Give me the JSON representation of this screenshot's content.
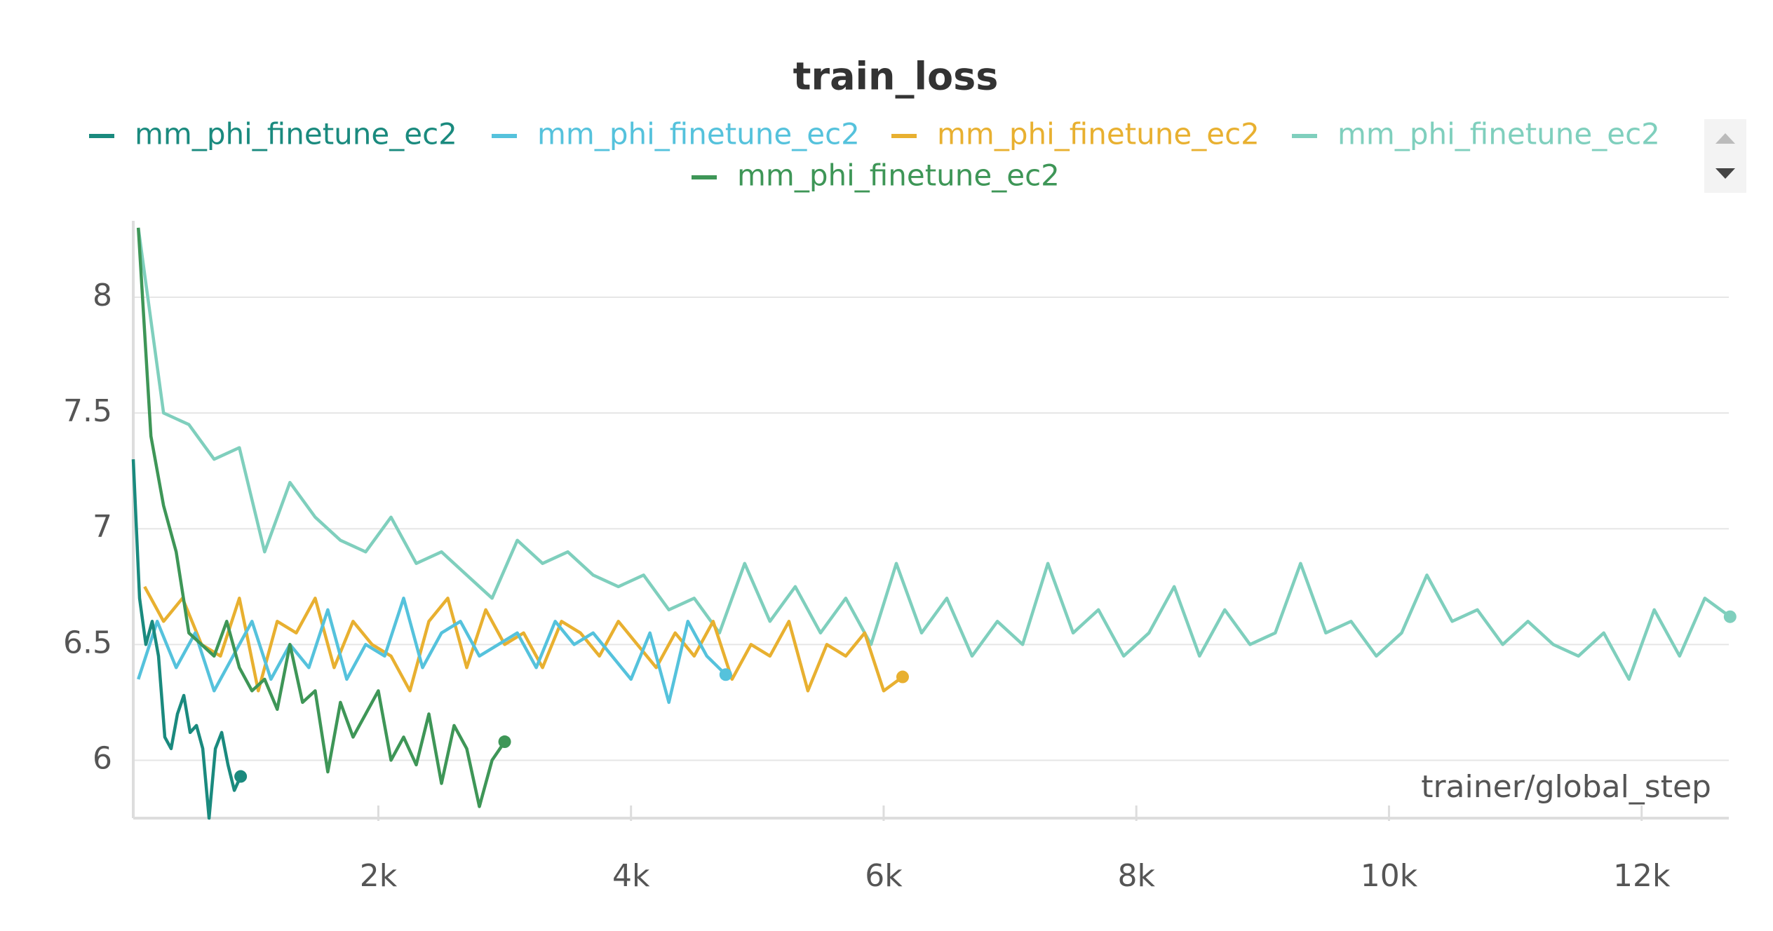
{
  "chart_data": {
    "type": "line",
    "title": "train_loss",
    "x_label": "trainer/global_step",
    "xlim": [
      60,
      12690
    ],
    "ylim": [
      5.75,
      8.33
    ],
    "xticks": [
      {
        "value": 2000,
        "label": "2k"
      },
      {
        "value": 4000,
        "label": "4k"
      },
      {
        "value": 6000,
        "label": "6k"
      },
      {
        "value": 8000,
        "label": "8k"
      },
      {
        "value": 10000,
        "label": "10k"
      },
      {
        "value": 12000,
        "label": "12k"
      }
    ],
    "yticks": [
      6,
      6.5,
      7,
      7.5,
      8
    ],
    "grid": true,
    "series": [
      {
        "name": "mm_phi_finetune_ec2",
        "color": "#1a8a7e",
        "x": [
          60,
          110,
          160,
          210,
          260,
          310,
          360,
          410,
          460,
          510,
          560,
          610,
          660,
          710,
          760,
          810,
          860,
          910
        ],
        "values": [
          7.3,
          6.7,
          6.5,
          6.6,
          6.45,
          6.1,
          6.05,
          6.2,
          6.28,
          6.12,
          6.15,
          6.05,
          5.75,
          6.05,
          6.12,
          5.98,
          5.87,
          5.93
        ]
      },
      {
        "name": "mm_phi_finetune_ec2",
        "color": "#55c2dc",
        "x": [
          100,
          250,
          400,
          550,
          700,
          850,
          1000,
          1150,
          1300,
          1450,
          1600,
          1750,
          1900,
          2050,
          2200,
          2350,
          2500,
          2650,
          2800,
          2950,
          3100,
          3250,
          3400,
          3550,
          3700,
          3850,
          4000,
          4150,
          4300,
          4450,
          4600,
          4750
        ],
        "values": [
          6.35,
          6.6,
          6.4,
          6.55,
          6.3,
          6.45,
          6.6,
          6.35,
          6.5,
          6.4,
          6.65,
          6.35,
          6.5,
          6.45,
          6.7,
          6.4,
          6.55,
          6.6,
          6.45,
          6.5,
          6.55,
          6.4,
          6.6,
          6.5,
          6.55,
          6.45,
          6.35,
          6.55,
          6.25,
          6.6,
          6.45,
          6.37
        ]
      },
      {
        "name": "mm_phi_finetune_ec2",
        "color": "#e8b030",
        "x": [
          150,
          300,
          450,
          600,
          750,
          900,
          1050,
          1200,
          1350,
          1500,
          1650,
          1800,
          1950,
          2100,
          2250,
          2400,
          2550,
          2700,
          2850,
          3000,
          3150,
          3300,
          3450,
          3600,
          3750,
          3900,
          4050,
          4200,
          4350,
          4500,
          4650,
          4800,
          4950,
          5100,
          5250,
          5400,
          5550,
          5700,
          5850,
          6000,
          6150
        ],
        "values": [
          6.75,
          6.6,
          6.7,
          6.5,
          6.45,
          6.7,
          6.3,
          6.6,
          6.55,
          6.7,
          6.4,
          6.6,
          6.5,
          6.45,
          6.3,
          6.6,
          6.7,
          6.4,
          6.65,
          6.5,
          6.55,
          6.4,
          6.6,
          6.55,
          6.45,
          6.6,
          6.5,
          6.4,
          6.55,
          6.45,
          6.6,
          6.35,
          6.5,
          6.45,
          6.6,
          6.3,
          6.5,
          6.45,
          6.55,
          6.3,
          6.36
        ]
      },
      {
        "name": "mm_phi_finetune_ec2",
        "color": "#7fcfbd",
        "x": [
          100,
          300,
          500,
          700,
          900,
          1100,
          1300,
          1500,
          1700,
          1900,
          2100,
          2300,
          2500,
          2700,
          2900,
          3100,
          3300,
          3500,
          3700,
          3900,
          4100,
          4300,
          4500,
          4700,
          4900,
          5100,
          5300,
          5500,
          5700,
          5900,
          6100,
          6300,
          6500,
          6700,
          6900,
          7100,
          7300,
          7500,
          7700,
          7900,
          8100,
          8300,
          8500,
          8700,
          8900,
          9100,
          9300,
          9500,
          9700,
          9900,
          10100,
          10300,
          10500,
          10700,
          10900,
          11100,
          11300,
          11500,
          11700,
          11900,
          12100,
          12300,
          12500,
          12700
        ],
        "values": [
          8.3,
          7.5,
          7.45,
          7.3,
          7.35,
          6.9,
          7.2,
          7.05,
          6.95,
          6.9,
          7.05,
          6.85,
          6.9,
          6.8,
          6.7,
          6.95,
          6.85,
          6.9,
          6.8,
          6.75,
          6.8,
          6.65,
          6.7,
          6.55,
          6.85,
          6.6,
          6.75,
          6.55,
          6.7,
          6.5,
          6.85,
          6.55,
          6.7,
          6.45,
          6.6,
          6.5,
          6.85,
          6.55,
          6.65,
          6.45,
          6.55,
          6.75,
          6.45,
          6.65,
          6.5,
          6.55,
          6.85,
          6.55,
          6.6,
          6.45,
          6.55,
          6.8,
          6.6,
          6.65,
          6.5,
          6.6,
          6.5,
          6.45,
          6.55,
          6.35,
          6.65,
          6.45,
          6.7,
          6.62
        ]
      },
      {
        "name": "mm_phi_finetune_ec2",
        "color": "#3e9657",
        "x": [
          100,
          200,
          300,
          400,
          500,
          600,
          700,
          800,
          900,
          1000,
          1100,
          1200,
          1300,
          1400,
          1500,
          1600,
          1700,
          1800,
          1900,
          2000,
          2100,
          2200,
          2300,
          2400,
          2500,
          2600,
          2700,
          2800,
          2900,
          3000
        ],
        "values": [
          8.3,
          7.4,
          7.1,
          6.9,
          6.55,
          6.5,
          6.45,
          6.6,
          6.4,
          6.3,
          6.35,
          6.22,
          6.5,
          6.25,
          6.3,
          5.95,
          6.25,
          6.1,
          6.2,
          6.3,
          6.0,
          6.1,
          5.98,
          6.2,
          5.9,
          6.15,
          6.05,
          5.8,
          6.0,
          6.08
        ]
      }
    ]
  }
}
